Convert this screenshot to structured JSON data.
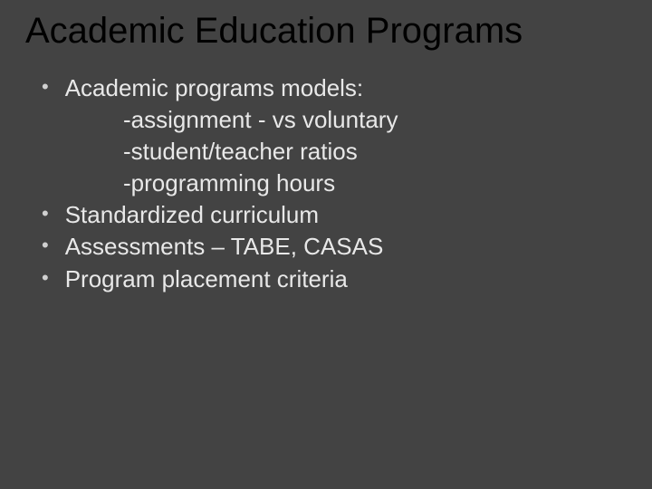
{
  "slide": {
    "title": "Academic Education Programs",
    "bullets": [
      {
        "text": "Academic programs models:",
        "subitems": [
          "-assignment - vs voluntary",
          "-student/teacher ratios",
          "-programming hours"
        ]
      },
      {
        "text": "Standardized curriculum",
        "subitems": []
      },
      {
        "text": "Assessments – TABE, CASAS",
        "subitems": []
      },
      {
        "text": "Program placement criteria",
        "subitems": []
      }
    ],
    "styling": {
      "background_color": "#434343",
      "title_color": "#000000",
      "title_fontsize": 40,
      "body_color": "#e8e8e8",
      "body_fontsize": 26,
      "bullet_color": "#d0d0d0",
      "font_family": "Arial"
    }
  }
}
